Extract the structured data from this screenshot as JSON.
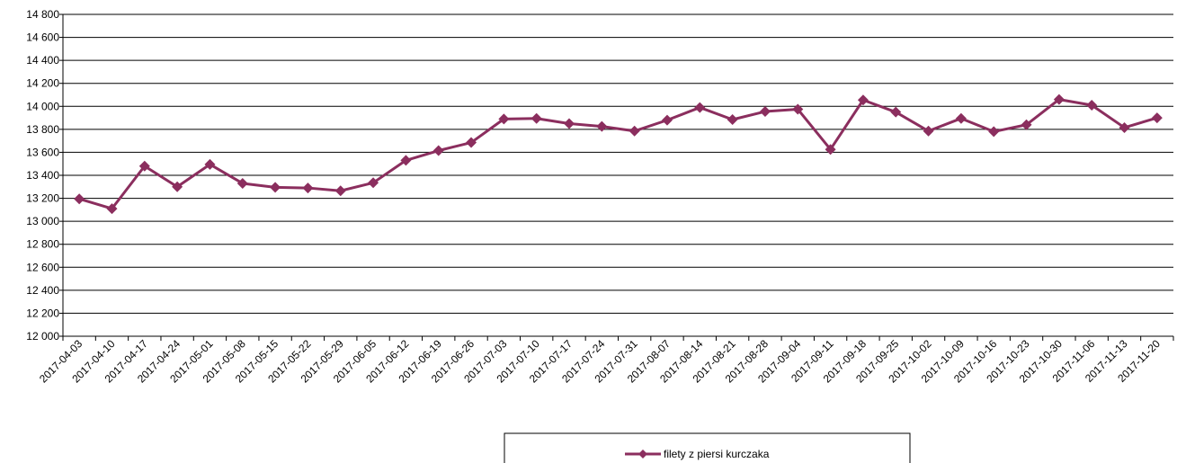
{
  "chart_data": {
    "type": "line",
    "title": "",
    "xlabel": "",
    "ylabel": "",
    "ylim": [
      12000,
      14800
    ],
    "ytick_step": 200,
    "ytick_labels": [
      "12 000",
      "12 200",
      "12 400",
      "12 600",
      "12 800",
      "13 000",
      "13 200",
      "13 400",
      "13 600",
      "13 800",
      "14 000",
      "14 200",
      "14 400",
      "14 600",
      "14 800"
    ],
    "grid": true,
    "legend_placement": "bottom-center",
    "categories": [
      "2017-04-03",
      "2017-04-10",
      "2017-04-17",
      "2017-04-24",
      "2017-05-01",
      "2017-05-08",
      "2017-05-15",
      "2017-05-22",
      "2017-05-29",
      "2017-06-05",
      "2017-06-12",
      "2017-06-19",
      "2017-06-26",
      "2017-07-03",
      "2017-07-10",
      "2017-07-17",
      "2017-07-24",
      "2017-07-31",
      "2017-08-07",
      "2017-08-14",
      "2017-08-21",
      "2017-08-28",
      "2017-09-04",
      "2017-09-11",
      "2017-09-18",
      "2017-09-25",
      "2017-10-02",
      "2017-10-09",
      "2017-10-16",
      "2017-10-23",
      "2017-10-30",
      "2017-11-06",
      "2017-11-13",
      "2017-11-20"
    ],
    "series": [
      {
        "name": "filety z piersi kurczaka",
        "color": "#8b2e5e",
        "marker": "diamond",
        "values": [
          13195,
          13110,
          13480,
          13300,
          13495,
          13330,
          13295,
          13290,
          13265,
          13335,
          13530,
          13615,
          13685,
          13890,
          13895,
          13850,
          13825,
          13785,
          13880,
          13990,
          13885,
          13955,
          13975,
          13625,
          14055,
          13950,
          13785,
          13895,
          13780,
          13840,
          14060,
          14010,
          13815,
          13900
        ]
      }
    ]
  }
}
